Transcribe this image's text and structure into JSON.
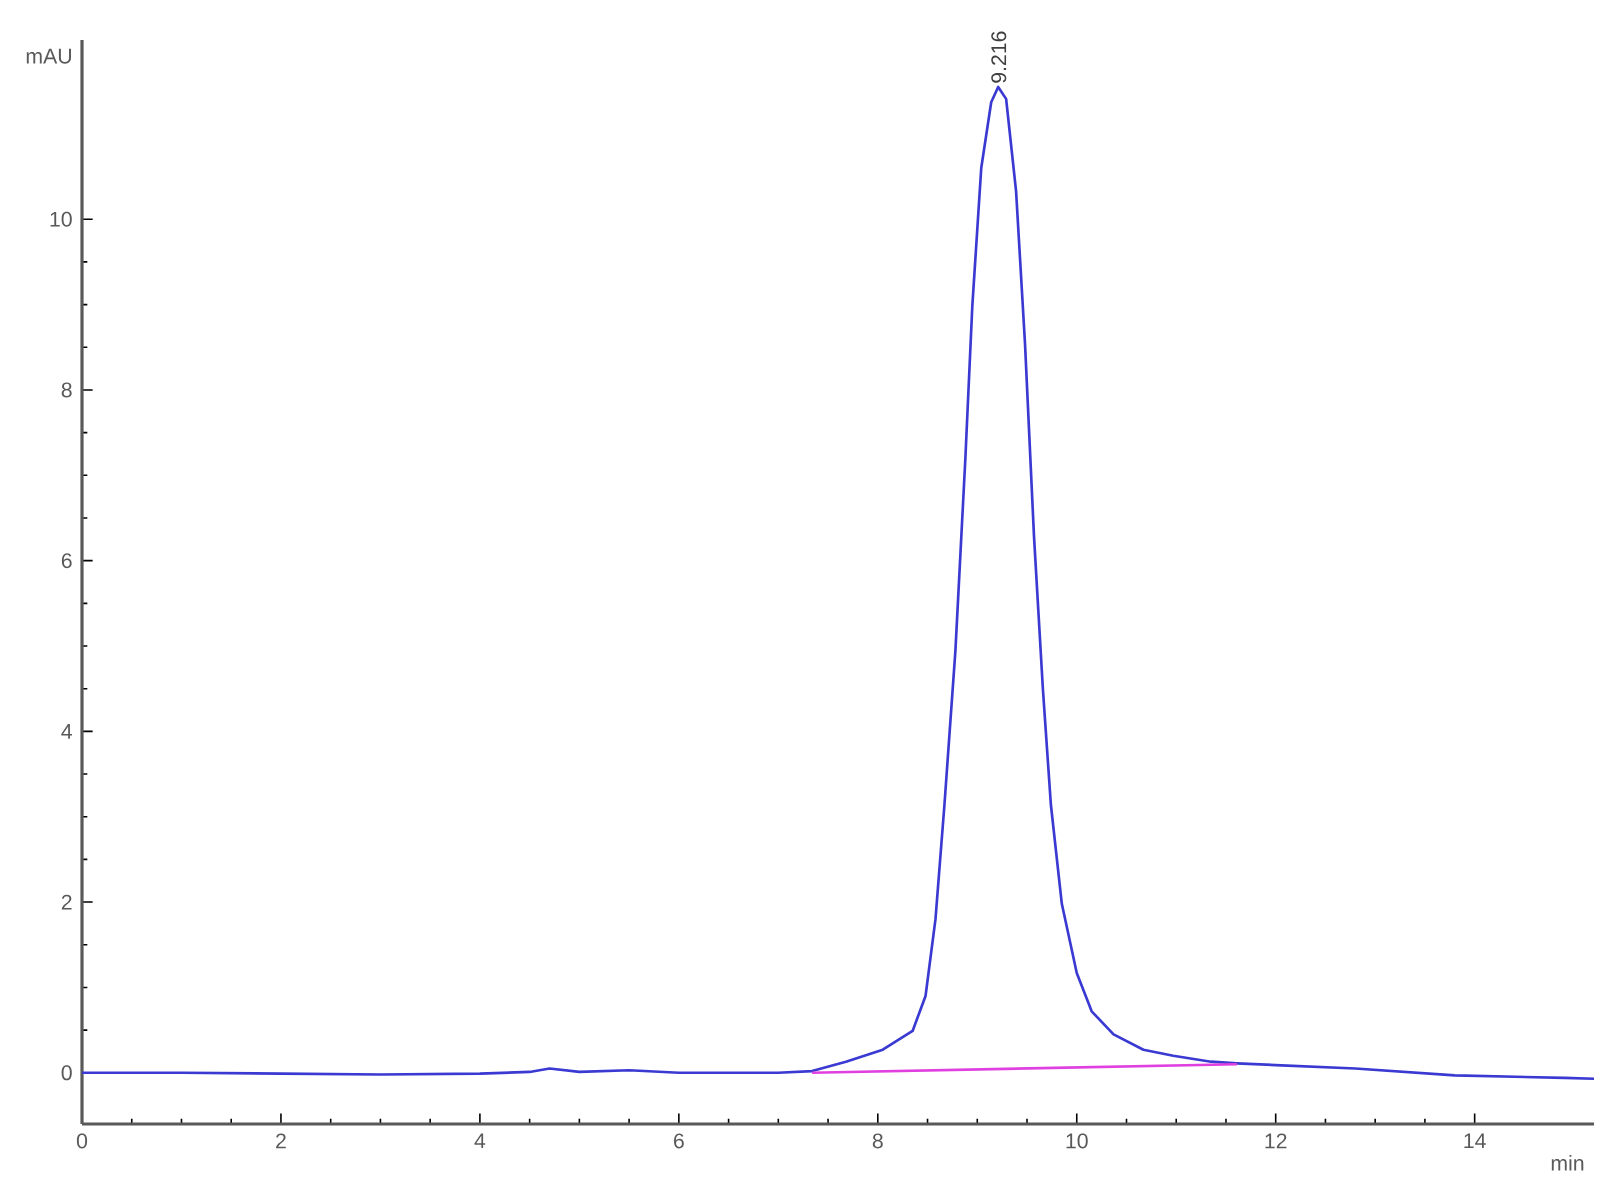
{
  "chart_data": {
    "type": "line",
    "xlabel": "min",
    "ylabel": "mAU",
    "xlim": [
      0,
      15.2
    ],
    "ylim": [
      -0.6,
      12.1
    ],
    "xticks": [
      0,
      2,
      4,
      6,
      8,
      10,
      12,
      14
    ],
    "yticks": [
      0,
      2,
      4,
      6,
      8,
      10
    ],
    "series": [
      {
        "color": "#3a3ad2",
        "x": [
          0,
          1,
          2,
          3,
          4,
          4.5,
          4.7,
          5,
          5.5,
          6,
          7,
          7.34,
          7.68,
          8.05,
          8.35,
          8.48,
          8.58,
          8.67,
          8.78,
          8.88,
          8.95,
          9.04,
          9.14,
          9.21,
          9.29,
          9.39,
          9.48,
          9.57,
          9.66,
          9.74,
          9.85,
          10.0,
          10.15,
          10.37,
          10.67,
          10.97,
          11.35,
          11.61,
          12.0,
          12.8,
          13.8,
          14.9,
          15.2
        ],
        "values": [
          0,
          0,
          -0.01,
          -0.02,
          -0.01,
          0.01,
          0.05,
          0.01,
          0.03,
          0,
          0,
          0.02,
          0.13,
          0.27,
          0.49,
          0.9,
          1.8,
          3.14,
          4.94,
          7.19,
          8.98,
          10.6,
          11.37,
          11.55,
          11.41,
          10.33,
          8.54,
          6.29,
          4.49,
          3.14,
          1.98,
          1.17,
          0.72,
          0.45,
          0.27,
          0.2,
          0.13,
          0.11,
          0.09,
          0.05,
          -0.03,
          -0.06,
          -0.07
        ]
      },
      {
        "color": "#e040e0",
        "x": [
          7.34,
          11.61
        ],
        "values": [
          0,
          0.1
        ]
      }
    ],
    "annotations": [
      {
        "text": "9.216",
        "x": 9.216,
        "y": 11.55
      }
    ],
    "grid": false
  }
}
